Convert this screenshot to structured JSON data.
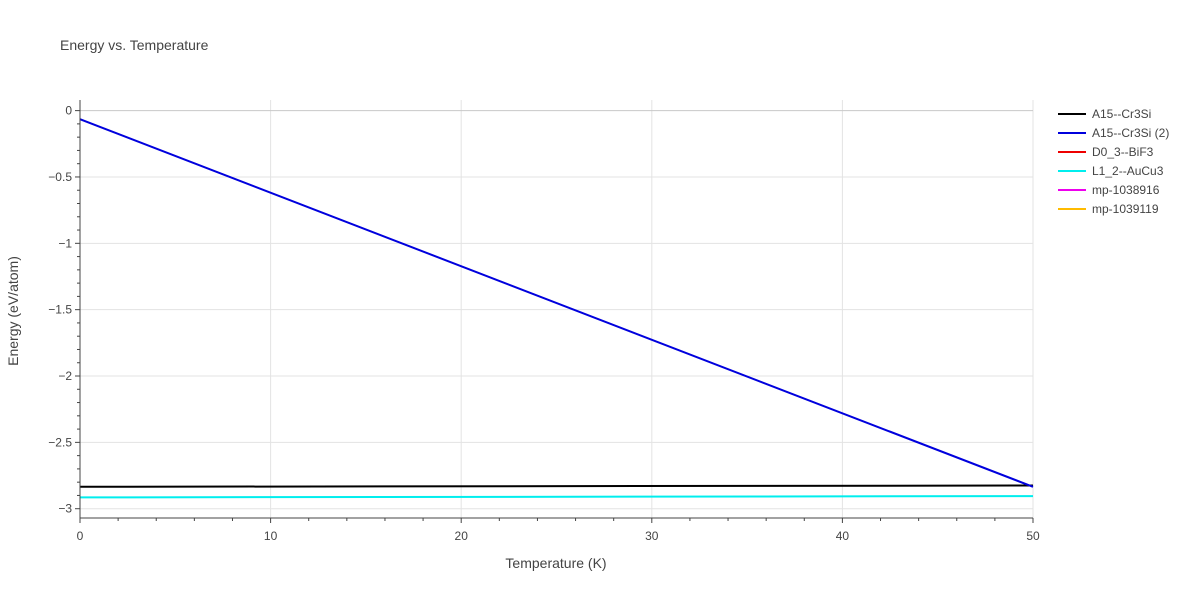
{
  "chart_data": {
    "type": "line",
    "title": "Energy vs. Temperature",
    "xlabel": "Temperature (K)",
    "ylabel": "Energy (eV/atom)",
    "xlim": [
      0,
      50
    ],
    "ylim": [
      -3.07,
      0.08
    ],
    "xticks": [
      0,
      10,
      20,
      30,
      40,
      50
    ],
    "xtick_labels": [
      "0",
      "10",
      "20",
      "30",
      "40",
      "50"
    ],
    "yticks": [
      0,
      -0.5,
      -1,
      -1.5,
      -2,
      -2.5,
      -3
    ],
    "ytick_labels": [
      "0",
      "−0.5",
      "−1",
      "−1.5",
      "−2",
      "−2.5",
      "−3"
    ],
    "grid": true,
    "legend_position": "top-right",
    "series": [
      {
        "name": "A15--Cr3Si",
        "color": "#000000",
        "x": [
          0,
          50
        ],
        "y": [
          -2.835,
          -2.825
        ]
      },
      {
        "name": "A15--Cr3Si (2)",
        "color": "#0000dd",
        "x": [
          0,
          50
        ],
        "y": [
          -0.065,
          -2.835
        ]
      },
      {
        "name": "D0_3--BiF3",
        "color": "#ee0000",
        "x": [],
        "y": []
      },
      {
        "name": "L1_2--AuCu3",
        "color": "#00eeee",
        "x": [
          0,
          50
        ],
        "y": [
          -2.915,
          -2.905
        ]
      },
      {
        "name": "mp-1038916",
        "color": "#ee00ee",
        "x": [],
        "y": []
      },
      {
        "name": "mp-1039119",
        "color": "#ffbb00",
        "x": [],
        "y": []
      }
    ]
  }
}
